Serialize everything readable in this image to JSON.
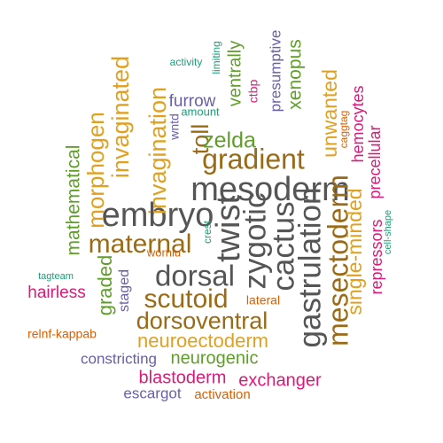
{
  "colors": {
    "dark_gray": "#555555",
    "brown": "#9a6b16",
    "orange": "#e0a020",
    "green": "#5f9e2a",
    "purple": "#6a5fa6",
    "magenta": "#d81b7a",
    "teal": "#1b9e77",
    "red_orange": "#d95f02"
  },
  "words": [
    {
      "text": "mesoderm",
      "color": "dark_gray"
    },
    {
      "text": "twist",
      "color": "dark_gray"
    },
    {
      "text": "embryo",
      "color": "dark_gray"
    },
    {
      "text": "dorsal",
      "color": "dark_gray"
    },
    {
      "text": "zygotic",
      "color": "dark_gray"
    },
    {
      "text": "cactus",
      "color": "dark_gray"
    },
    {
      "text": "gastrulation",
      "color": "dark_gray"
    },
    {
      "text": "gradient",
      "color": "brown"
    },
    {
      "text": "maternal",
      "color": "brown"
    },
    {
      "text": "scutoid",
      "color": "brown"
    },
    {
      "text": "dorsoventral",
      "color": "brown"
    },
    {
      "text": "mesectoderm",
      "color": "brown"
    },
    {
      "text": "toll",
      "color": "brown"
    },
    {
      "text": "invaginated",
      "color": "orange"
    },
    {
      "text": "invagination",
      "color": "orange"
    },
    {
      "text": "morphogen",
      "color": "orange"
    },
    {
      "text": "neuroectoderm",
      "color": "orange"
    },
    {
      "text": "single-minded",
      "color": "orange"
    },
    {
      "text": "unwanted",
      "color": "orange"
    },
    {
      "text": "zelda",
      "color": "green"
    },
    {
      "text": "mathematical",
      "color": "green"
    },
    {
      "text": "graded",
      "color": "green"
    },
    {
      "text": "neurogenic",
      "color": "green"
    },
    {
      "text": "ventrally",
      "color": "green"
    },
    {
      "text": "xenopus",
      "color": "green"
    },
    {
      "text": "furrow",
      "color": "purple"
    },
    {
      "text": "staged",
      "color": "purple"
    },
    {
      "text": "constricting",
      "color": "purple"
    },
    {
      "text": "escargot",
      "color": "purple"
    },
    {
      "text": "presumptive",
      "color": "purple"
    },
    {
      "text": "wntd",
      "color": "purple"
    },
    {
      "text": "hairless",
      "color": "magenta"
    },
    {
      "text": "blastoderm",
      "color": "magenta"
    },
    {
      "text": "exchanger",
      "color": "magenta"
    },
    {
      "text": "hemocytes",
      "color": "magenta"
    },
    {
      "text": "precellular",
      "color": "magenta"
    },
    {
      "text": "repressors",
      "color": "magenta"
    },
    {
      "text": "ctbp",
      "color": "magenta"
    },
    {
      "text": "activity",
      "color": "teal"
    },
    {
      "text": "limiting",
      "color": "teal"
    },
    {
      "text": "amount",
      "color": "teal"
    },
    {
      "text": "crest",
      "color": "teal"
    },
    {
      "text": "tagteam",
      "color": "teal"
    },
    {
      "text": "cell-shape",
      "color": "teal"
    },
    {
      "text": "worniu",
      "color": "red_orange"
    },
    {
      "text": "lateral",
      "color": "red_orange"
    },
    {
      "text": "relnf-kappab",
      "color": "red_orange"
    },
    {
      "text": "activation",
      "color": "red_orange"
    },
    {
      "text": "caggtag",
      "color": "red_orange"
    }
  ]
}
